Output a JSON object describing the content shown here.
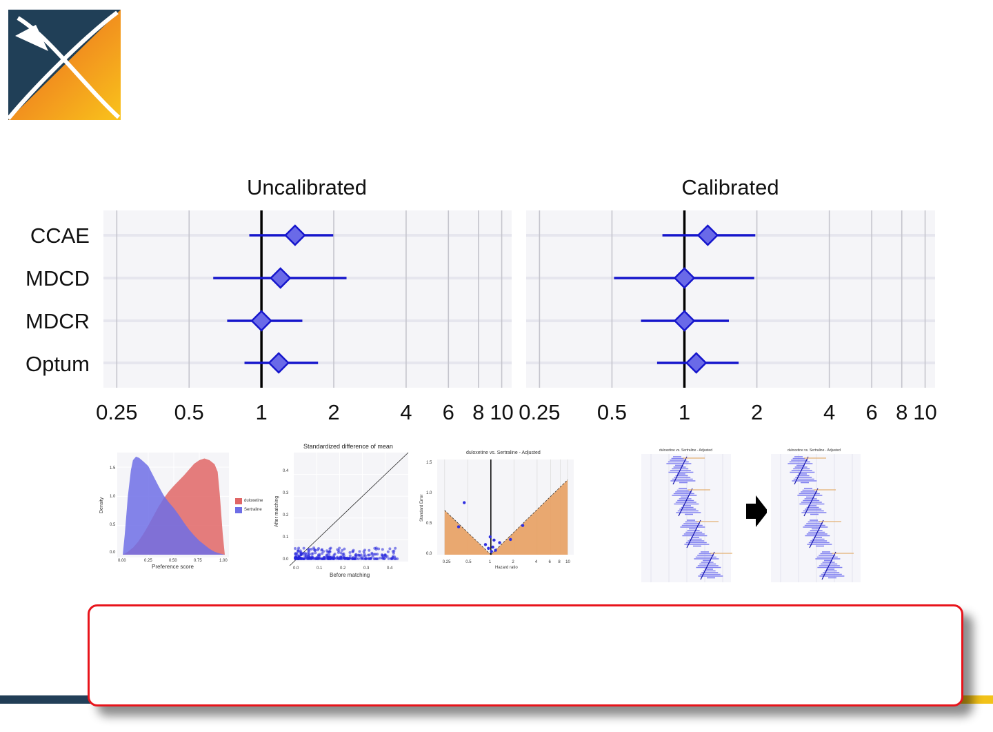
{
  "chart_data": [
    {
      "type": "forest",
      "title": "Uncalibrated",
      "x_scale": "log",
      "xlim": [
        0.22,
        11
      ],
      "x_ticks": [
        0.25,
        0.5,
        1,
        2,
        4,
        6,
        8,
        10
      ],
      "x_tick_labels": [
        "0.25",
        "0.5",
        "1",
        "2",
        "4",
        "6",
        "8",
        "10"
      ],
      "reference_line": 1,
      "grid": true,
      "rows": [
        {
          "label": "CCAE",
          "estimate": 1.38,
          "lower": 0.89,
          "upper": 1.99
        },
        {
          "label": "MDCD",
          "estimate": 1.2,
          "lower": 0.63,
          "upper": 2.26
        },
        {
          "label": "MDCR",
          "estimate": 1.0,
          "lower": 0.72,
          "upper": 1.48
        },
        {
          "label": "Optum",
          "estimate": 1.18,
          "lower": 0.85,
          "upper": 1.72
        }
      ]
    },
    {
      "type": "forest",
      "title": "Calibrated",
      "x_scale": "log",
      "xlim": [
        0.22,
        11
      ],
      "x_ticks": [
        0.25,
        0.5,
        1,
        2,
        4,
        6,
        8,
        10
      ],
      "x_tick_labels": [
        "0.25",
        "0.5",
        "1",
        "2",
        "4",
        "6",
        "8",
        "10"
      ],
      "reference_line": 1,
      "grid": true,
      "rows": [
        {
          "label": "CCAE",
          "estimate": 1.25,
          "lower": 0.81,
          "upper": 1.97
        },
        {
          "label": "MDCD",
          "estimate": 1.0,
          "lower": 0.51,
          "upper": 1.95
        },
        {
          "label": "MDCR",
          "estimate": 1.0,
          "lower": 0.66,
          "upper": 1.53
        },
        {
          "label": "Optum",
          "estimate": 1.12,
          "lower": 0.77,
          "upper": 1.68
        }
      ]
    },
    {
      "type": "area",
      "xlabel": "Preference score",
      "ylabel": "Density",
      "x_tick_labels": [
        "0.00",
        "0.25",
        "0.50",
        "0.75",
        "1.00"
      ],
      "y_tick_labels": [
        "0.0",
        "0.5",
        "1.0",
        "1.5"
      ],
      "xlim": [
        0,
        1
      ],
      "ylim": [
        0,
        1.75
      ],
      "series": [
        {
          "name": "duloxetine",
          "color": "#e06666",
          "x": [
            0.0,
            0.05,
            0.1,
            0.15,
            0.2,
            0.25,
            0.3,
            0.35,
            0.4,
            0.45,
            0.5,
            0.55,
            0.6,
            0.65,
            0.7,
            0.75,
            0.8,
            0.85,
            0.9,
            0.93,
            0.95,
            0.98,
            1.0
          ],
          "values": [
            0.0,
            0.05,
            0.12,
            0.22,
            0.35,
            0.5,
            0.66,
            0.82,
            0.96,
            1.08,
            1.18,
            1.27,
            1.36,
            1.46,
            1.56,
            1.62,
            1.65,
            1.62,
            1.55,
            1.42,
            1.05,
            0.35,
            0.0
          ]
        },
        {
          "name": "Sertraline",
          "color": "#6e6ee6",
          "x": [
            0.0,
            0.02,
            0.05,
            0.08,
            0.1,
            0.13,
            0.16,
            0.2,
            0.25,
            0.3,
            0.35,
            0.4,
            0.45,
            0.5,
            0.55,
            0.6,
            0.65,
            0.7,
            0.75,
            0.8,
            0.85,
            0.9,
            0.95,
            1.0
          ],
          "values": [
            0.0,
            0.35,
            1.0,
            1.45,
            1.62,
            1.68,
            1.66,
            1.6,
            1.52,
            1.35,
            1.18,
            1.02,
            0.9,
            0.8,
            0.68,
            0.55,
            0.43,
            0.33,
            0.24,
            0.17,
            0.1,
            0.05,
            0.02,
            0.0
          ]
        }
      ]
    },
    {
      "type": "scatter",
      "title": "Standardized difference of mean",
      "xlabel": "Before matching",
      "ylabel": "After matching",
      "x_tick_labels": [
        "0.0",
        "0.1",
        "0.2",
        "0.3",
        "0.4"
      ],
      "y_tick_labels": [
        "0.0",
        "0.1",
        "0.2",
        "0.3",
        "0.4"
      ],
      "xlim": [
        0,
        0.5
      ],
      "ylim": [
        0,
        0.5
      ],
      "reference_line": "y = x"
    },
    {
      "type": "scatter",
      "title": "duloxetine vs. Sertraline - Adjusted",
      "xlabel": "Hazard ratio",
      "ylabel": "Standard Error",
      "x_scale": "log",
      "x_tick_labels": [
        "0.25",
        "0.5",
        "1",
        "2",
        "4",
        "6",
        "8",
        "10"
      ],
      "y_tick_labels": [
        "0.0",
        "0.5",
        "1.0",
        "1.5"
      ],
      "ylim": [
        0,
        1.5
      ],
      "points": [
        [
          0.38,
          0.44
        ],
        [
          0.45,
          0.82
        ],
        [
          0.85,
          0.16
        ],
        [
          0.93,
          0.1
        ],
        [
          0.98,
          0.28
        ],
        [
          1.02,
          0.05
        ],
        [
          1.06,
          0.12
        ],
        [
          1.1,
          0.23
        ],
        [
          1.15,
          0.07
        ],
        [
          1.3,
          0.19
        ],
        [
          1.8,
          0.24
        ],
        [
          2.6,
          0.46
        ]
      ]
    }
  ],
  "figure_thumbnails": {
    "before_title": "duloxetine vs. Sertraline - Adjusted",
    "after_title": "duloxetine vs. Sertraline - Adjusted"
  }
}
